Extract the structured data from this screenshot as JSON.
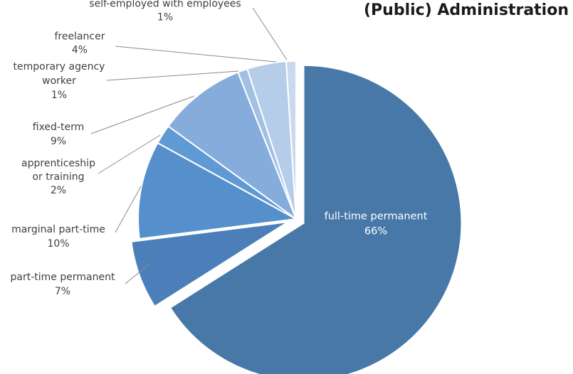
{
  "chart_data": {
    "type": "pie",
    "title": "(Public) Administration",
    "start_angle_deg": 0,
    "direction": "clockwise",
    "exploded": [
      "full-time permanent",
      "part-time permanent"
    ],
    "slices": [
      {
        "name": "full-time permanent",
        "value": 66,
        "label": "66%",
        "color": "#4878a8"
      },
      {
        "name": "part-time permanent",
        "value": 7,
        "label": "7%",
        "color": "#4c7fba"
      },
      {
        "name": "marginal part-time",
        "value": 10,
        "label": "10%",
        "color": "#5590cc"
      },
      {
        "name": "apprenticeship or training",
        "value": 2,
        "label": "2%",
        "color": "#5f9ad4"
      },
      {
        "name": "fixed-term",
        "value": 9,
        "label": "9%",
        "color": "#86acdc"
      },
      {
        "name": "temporary agency worker",
        "value": 1,
        "label": "1%",
        "color": "#a2bfe4"
      },
      {
        "name": "freelancer",
        "value": 4,
        "label": "4%",
        "color": "#b6cde9"
      },
      {
        "name": "self-employed with employees",
        "value": 1,
        "label": "1%",
        "color": "#c9d9ee"
      }
    ],
    "label_lines": {
      "full-time permanent": [
        "full-time permanent",
        "66%"
      ],
      "part-time permanent": [
        "part-time permanent",
        "7%"
      ],
      "marginal part-time": [
        "marginal part-time",
        "10%"
      ],
      "apprenticeship or training": [
        "apprenticeship",
        "or training",
        "2%"
      ],
      "fixed-term": [
        "fixed-term",
        "9%"
      ],
      "temporary agency worker": [
        "temporary agency",
        "worker",
        "1%"
      ],
      "freelancer": [
        "freelancer",
        "4%"
      ],
      "self-employed with employees": [
        "self-employed with employees",
        "1%"
      ]
    }
  }
}
